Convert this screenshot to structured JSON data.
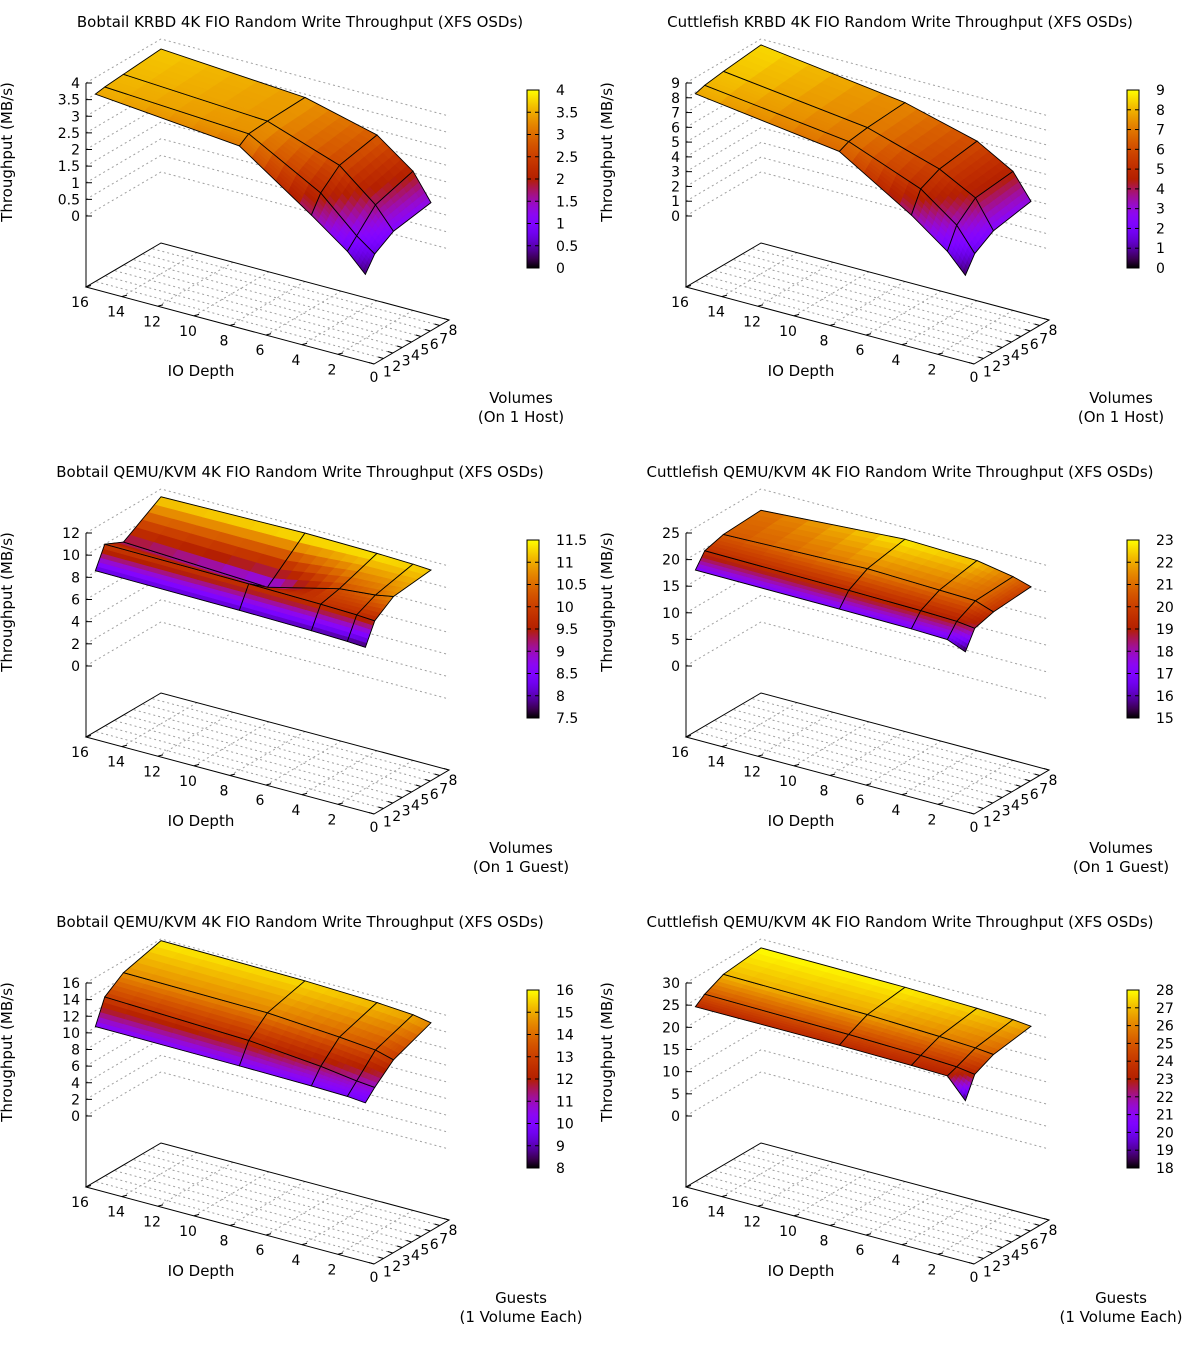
{
  "chart_data": [
    {
      "type": "surface3d",
      "title": "Bobtail KRBD 4K FIO Random Write Throughput (XFS OSDs)",
      "xlabel": "Volumes\n(On 1 Host)",
      "ylabel": "IO Depth",
      "zlabel": "Throughput (MB/s)",
      "x_ticks": [
        "0",
        "1",
        "2",
        "3",
        "4",
        "5",
        "6",
        "7",
        "8"
      ],
      "y_ticks": [
        "2",
        "4",
        "6",
        "8",
        "10",
        "12",
        "14",
        "16"
      ],
      "z_ticks": [
        "0",
        "0.5",
        "1",
        "1.5",
        "2",
        "2.5",
        "3",
        "3.5",
        "4"
      ],
      "xlim": [
        0,
        8
      ],
      "ylim": [
        0,
        16
      ],
      "zlim": [
        0,
        4
      ],
      "cb_ticks": [
        "0",
        "0.5",
        "1",
        "1.5",
        "2",
        "2.5",
        "3",
        "3.5",
        "4"
      ],
      "cbrange": [
        0,
        4
      ],
      "x": [
        1,
        2,
        4,
        8
      ],
      "y": [
        1,
        2,
        4,
        8,
        16
      ],
      "z": [
        [
          0.25,
          0.7,
          1.05,
          1.25
        ],
        [
          0.8,
          1.1,
          1.7,
          2.05
        ],
        [
          1.6,
          2.1,
          2.6,
          2.85
        ],
        [
          3.1,
          3.3,
          3.35,
          3.4
        ],
        [
          3.5,
          3.55,
          3.6,
          3.7
        ]
      ]
    },
    {
      "type": "surface3d",
      "title": "Cuttlefish KRBD 4K FIO Random Write Throughput (XFS OSDs)",
      "xlabel": "Volumes\n(On 1 Host)",
      "ylabel": "IO Depth",
      "zlabel": "Throughput (MB/s)",
      "x_ticks": [
        "0",
        "1",
        "2",
        "3",
        "4",
        "5",
        "6",
        "7",
        "8"
      ],
      "y_ticks": [
        "2",
        "4",
        "6",
        "8",
        "10",
        "12",
        "14",
        "16"
      ],
      "z_ticks": [
        "0",
        "1",
        "2",
        "3",
        "4",
        "5",
        "6",
        "7",
        "8",
        "9"
      ],
      "xlim": [
        0,
        8
      ],
      "ylim": [
        0,
        16
      ],
      "zlim": [
        0,
        9
      ],
      "cb_ticks": [
        "0",
        "1",
        "2",
        "3",
        "4",
        "5",
        "6",
        "7",
        "8",
        "9"
      ],
      "cbrange": [
        0,
        9
      ],
      "x": [
        1,
        2,
        4,
        8
      ],
      "y": [
        1,
        2,
        4,
        8,
        16
      ],
      "z": [
        [
          0.5,
          1.6,
          2.4,
          2.9
        ],
        [
          1.8,
          3.2,
          4.3,
          4.6
        ],
        [
          3.6,
          5.0,
          5.6,
          6.0
        ],
        [
          6.6,
          6.9,
          7.1,
          7.3
        ],
        [
          7.9,
          8.1,
          8.3,
          8.6
        ]
      ]
    },
    {
      "type": "surface3d",
      "title": "Bobtail QEMU/KVM 4K FIO Random Write Throughput (XFS OSDs)",
      "xlabel": "Volumes\n(On 1 Guest)",
      "ylabel": "IO Depth",
      "zlabel": "Throughput (MB/s)",
      "x_ticks": [
        "0",
        "1",
        "2",
        "3",
        "4",
        "5",
        "6",
        "7",
        "8"
      ],
      "y_ticks": [
        "2",
        "4",
        "6",
        "8",
        "10",
        "12",
        "14",
        "16"
      ],
      "z_ticks": [
        "0",
        "2",
        "4",
        "6",
        "8",
        "10",
        "12"
      ],
      "xlim": [
        0,
        8
      ],
      "ylim": [
        0,
        16
      ],
      "zlim": [
        0,
        12
      ],
      "cb_ticks": [
        "7.5",
        "8",
        "8.5",
        "9",
        "9.5",
        "10",
        "10.5",
        "11",
        "11.5"
      ],
      "cbrange": [
        7.5,
        11.5
      ],
      "x": [
        1,
        2,
        4,
        8
      ],
      "y": [
        1,
        2,
        4,
        8,
        16
      ],
      "z": [
        [
          7.7,
          9.6,
          10.8,
          11.2
        ],
        [
          7.8,
          9.7,
          10.5,
          11.3
        ],
        [
          7.9,
          9.8,
          10.2,
          11.4
        ],
        [
          8.0,
          9.9,
          8.6,
          11.5
        ],
        [
          8.1,
          10.0,
          9.2,
          11.3
        ]
      ]
    },
    {
      "type": "surface3d",
      "title": "Cuttlefish QEMU/KVM 4K FIO Random Write Throughput (XFS OSDs)",
      "xlabel": "Volumes\n(On 1 Guest)",
      "ylabel": "IO Depth",
      "zlabel": "Throughput (MB/s)",
      "x_ticks": [
        "0",
        "1",
        "2",
        "3",
        "4",
        "5",
        "6",
        "7",
        "8"
      ],
      "y_ticks": [
        "2",
        "4",
        "6",
        "8",
        "10",
        "12",
        "14",
        "16"
      ],
      "z_ticks": [
        "0",
        "5",
        "10",
        "15",
        "20",
        "25"
      ],
      "xlim": [
        0,
        8
      ],
      "ylim": [
        0,
        16
      ],
      "zlim": [
        0,
        25
      ],
      "cb_ticks": [
        "15",
        "16",
        "17",
        "18",
        "19",
        "20",
        "21",
        "22",
        "23"
      ],
      "cbrange": [
        15,
        23
      ],
      "x": [
        1,
        2,
        4,
        8
      ],
      "y": [
        1,
        2,
        4,
        8,
        16
      ],
      "z": [
        [
          15.2,
          18.6,
          19.6,
          20.2
        ],
        [
          16.6,
          19.0,
          20.8,
          21.2
        ],
        [
          16.8,
          19.2,
          21.0,
          22.4
        ],
        [
          16.9,
          19.4,
          21.4,
          22.8
        ],
        [
          17.0,
          19.6,
          20.6,
          21.0
        ]
      ]
    },
    {
      "type": "surface3d",
      "title": "Bobtail QEMU/KVM 4K FIO Random Write Throughput (XFS OSDs)",
      "xlabel": "Guests\n(1 Volume Each)",
      "ylabel": "IO Depth",
      "zlabel": "Throughput (MB/s)",
      "x_ticks": [
        "0",
        "1",
        "2",
        "3",
        "4",
        "5",
        "6",
        "7",
        "8"
      ],
      "y_ticks": [
        "2",
        "4",
        "6",
        "8",
        "10",
        "12",
        "14",
        "16"
      ],
      "z_ticks": [
        "0",
        "2",
        "4",
        "6",
        "8",
        "10",
        "12",
        "14",
        "16"
      ],
      "xlim": [
        0,
        8
      ],
      "ylim": [
        0,
        16
      ],
      "zlim": [
        0,
        16
      ],
      "cb_ticks": [
        "8",
        "9",
        "10",
        "11",
        "12",
        "13",
        "14",
        "15",
        "16"
      ],
      "cbrange": [
        8,
        16
      ],
      "x": [
        1,
        2,
        4,
        8
      ],
      "y": [
        1,
        2,
        4,
        8,
        16
      ],
      "z": [
        [
          9.6,
          10.8,
          12.8,
          14.6
        ],
        [
          9.8,
          11.0,
          13.4,
          15.0
        ],
        [
          9.9,
          11.6,
          13.8,
          15.3
        ],
        [
          10.0,
          12.4,
          14.4,
          15.6
        ],
        [
          10.1,
          13.0,
          14.6,
          15.8
        ]
      ]
    },
    {
      "type": "surface3d",
      "title": "Cuttlefish QEMU/KVM 4K FIO Random Write Throughput (XFS OSDs)",
      "xlabel": "Guests\n(1 Volume Each)",
      "ylabel": "IO Depth",
      "zlabel": "Throughput (MB/s)",
      "x_ticks": [
        "0",
        "1",
        "2",
        "3",
        "4",
        "5",
        "6",
        "7",
        "8"
      ],
      "y_ticks": [
        "2",
        "4",
        "6",
        "8",
        "10",
        "12",
        "14",
        "16"
      ],
      "z_ticks": [
        "0",
        "5",
        "10",
        "15",
        "20",
        "25",
        "30"
      ],
      "xlim": [
        0,
        8
      ],
      "ylim": [
        0,
        16
      ],
      "zlim": [
        0,
        30
      ],
      "cb_ticks": [
        "18",
        "19",
        "20",
        "21",
        "22",
        "23",
        "24",
        "25",
        "26",
        "27",
        "28"
      ],
      "cbrange": [
        18,
        28
      ],
      "x": [
        1,
        2,
        4,
        8
      ],
      "y": [
        1,
        2,
        4,
        8,
        16
      ],
      "z": [
        [
          18.5,
          23.2,
          25.2,
          26.6
        ],
        [
          23.0,
          23.8,
          25.6,
          27.0
        ],
        [
          23.2,
          24.2,
          26.0,
          27.4
        ],
        [
          23.4,
          24.6,
          26.6,
          27.8
        ],
        [
          23.4,
          25.0,
          27.0,
          28.0
        ]
      ]
    }
  ]
}
